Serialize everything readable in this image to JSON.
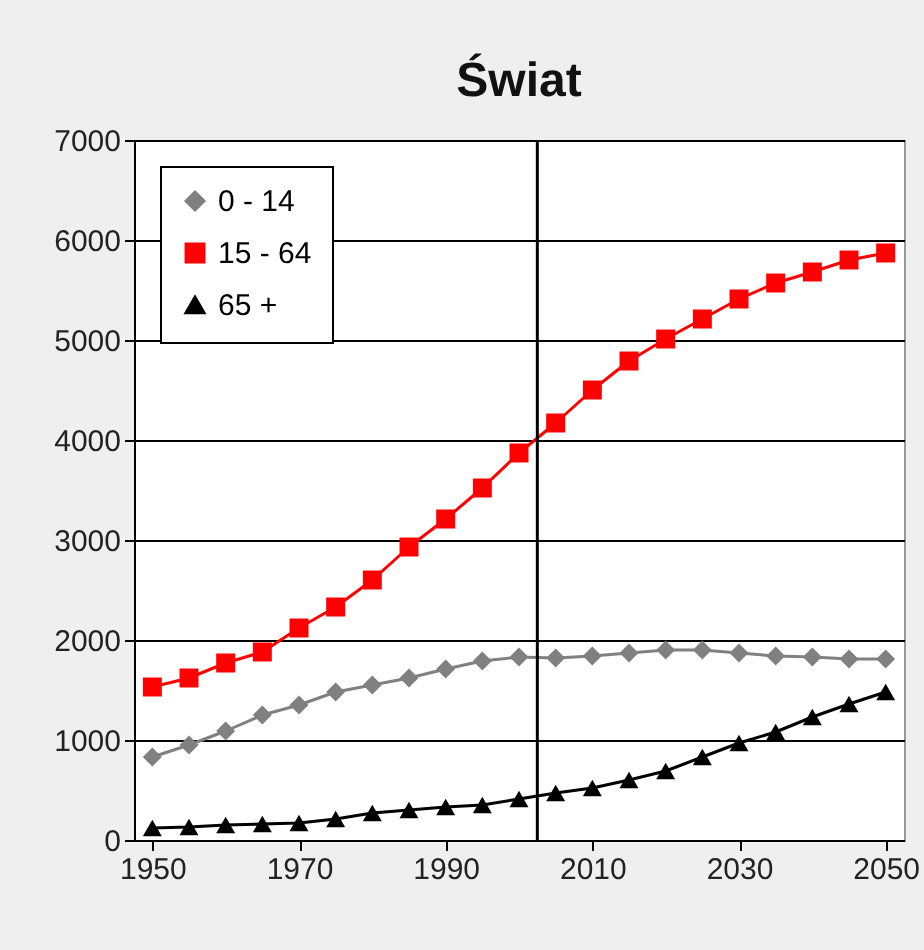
{
  "chart_data": {
    "type": "line",
    "title": "Świat",
    "x": [
      1950,
      1955,
      1960,
      1965,
      1970,
      1975,
      1980,
      1985,
      1990,
      1995,
      2000,
      2005,
      2010,
      2015,
      2020,
      2025,
      2030,
      2035,
      2040,
      2045,
      2050
    ],
    "xlim": [
      1947.5,
      2052.5
    ],
    "xticks": [
      1950,
      1970,
      1990,
      2010,
      2030,
      2050
    ],
    "ylim": [
      0,
      7000
    ],
    "yticks": [
      0,
      1000,
      2000,
      3000,
      4000,
      5000,
      6000,
      7000
    ],
    "grid": "y",
    "legend": "top left",
    "ref_lines": [
      {
        "axis": "x",
        "value": 2002.5,
        "color": "#000000"
      }
    ],
    "series": [
      {
        "name": "0 - 14",
        "color": "#808080",
        "marker": "diamond",
        "values": [
          830,
          950,
          1090,
          1250,
          1350,
          1480,
          1550,
          1620,
          1710,
          1790,
          1830,
          1820,
          1840,
          1870,
          1900,
          1900,
          1870,
          1840,
          1830,
          1810,
          1810
        ]
      },
      {
        "name": "15 - 64",
        "color": "#ff0000",
        "marker": "square",
        "values": [
          1530,
          1620,
          1770,
          1880,
          2120,
          2330,
          2600,
          2930,
          3210,
          3520,
          3870,
          4170,
          4500,
          4790,
          5010,
          5210,
          5410,
          5570,
          5680,
          5800,
          5870
        ]
      },
      {
        "name": "65 +",
        "color": "#000000",
        "marker": "triangle",
        "values": [
          120,
          130,
          150,
          160,
          170,
          210,
          270,
          300,
          330,
          350,
          410,
          470,
          520,
          600,
          690,
          830,
          970,
          1080,
          1230,
          1360,
          1480
        ]
      }
    ]
  }
}
